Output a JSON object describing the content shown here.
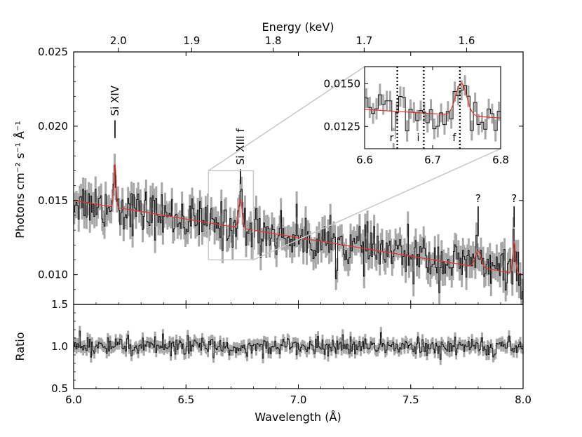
{
  "colors": {
    "model": "#e8322e",
    "data": "#111111",
    "error": "#a8a8a8",
    "frame": "#000000",
    "zoom_box": "#c8c8c8"
  },
  "chart_data": [
    {
      "id": "main",
      "type": "line",
      "xlabel": "Wavelength (Å)",
      "ylabel": "Photons cm⁻² s⁻¹ Å⁻¹",
      "top_xlabel": "Energy (keV)",
      "xlim": [
        6.0,
        8.0
      ],
      "ylim": [
        0.008,
        0.025
      ],
      "xticks": [
        {
          "value": 6.0,
          "label": "6.0"
        },
        {
          "value": 6.5,
          "label": "6.5"
        },
        {
          "value": 7.0,
          "label": "7.0"
        },
        {
          "value": 7.5,
          "label": "7.5"
        },
        {
          "value": 8.0,
          "label": "8.0"
        }
      ],
      "yticks": [
        {
          "value": 0.01,
          "label": "0.010"
        },
        {
          "value": 0.015,
          "label": "0.015"
        },
        {
          "value": 0.02,
          "label": "0.020"
        },
        {
          "value": 0.025,
          "label": "0.025"
        }
      ],
      "top_ticks": [
        {
          "value": 2.0,
          "label": "2.0"
        },
        {
          "value": 1.9,
          "label": "1.9"
        },
        {
          "value": 1.8,
          "label": "1.8"
        },
        {
          "value": 1.7,
          "label": "1.7"
        },
        {
          "value": 1.6,
          "label": "1.6"
        }
      ],
      "continuum": {
        "x": [
          6.0,
          8.0
        ],
        "y": [
          0.015,
          0.01
        ]
      },
      "model_lines": [
        {
          "center": 6.184,
          "amplitude": 0.0029,
          "sigma": 0.005
        },
        {
          "center": 6.742,
          "amplitude": 0.0019,
          "sigma": 0.008
        },
        {
          "center": 7.8,
          "amplitude": 0.0011,
          "sigma": 0.013
        },
        {
          "center": 7.96,
          "amplitude": 0.0021,
          "sigma": 0.006
        }
      ],
      "annotations": [
        {
          "label": "Si XIV",
          "x": 6.184,
          "y_line": [
            0.0192,
            0.0204
          ]
        },
        {
          "label": "Si XIII f",
          "x": 6.742,
          "y_line": [
            0.0161,
            0.0171
          ]
        },
        {
          "label": "?",
          "x": 7.8,
          "y_line": [
            0.0126,
            0.0146
          ]
        },
        {
          "label": "?",
          "x": 7.96,
          "y_line": [
            0.0132,
            0.0146
          ]
        }
      ],
      "zoom_box": {
        "x": [
          6.6,
          6.8
        ],
        "y": [
          0.011,
          0.017
        ]
      }
    },
    {
      "id": "inset",
      "type": "line",
      "xlim": [
        6.6,
        6.8
      ],
      "ylim": [
        0.0112,
        0.016
      ],
      "xticks": [
        {
          "value": 6.6,
          "label": "6.6"
        },
        {
          "value": 6.7,
          "label": "6.7"
        },
        {
          "value": 6.8,
          "label": "6.8"
        }
      ],
      "yticks": [
        {
          "value": 0.0125,
          "label": "0.0125"
        },
        {
          "value": 0.015,
          "label": "0.0150"
        }
      ],
      "markers": [
        {
          "label": "r",
          "x": 6.648
        },
        {
          "label": "i",
          "x": 6.687
        },
        {
          "label": "f",
          "x": 6.74
        }
      ]
    },
    {
      "id": "ratio",
      "type": "line",
      "ylabel": "Ratio",
      "xlim": [
        6.0,
        8.0
      ],
      "ylim": [
        0.5,
        1.5
      ],
      "xticks": [
        {
          "value": 6.0,
          "label": "6.0"
        },
        {
          "value": 6.5,
          "label": "6.5"
        },
        {
          "value": 7.0,
          "label": "7.0"
        },
        {
          "value": 7.5,
          "label": "7.5"
        },
        {
          "value": 8.0,
          "label": "8.0"
        }
      ],
      "yticks": [
        {
          "value": 0.5,
          "label": "0.5"
        },
        {
          "value": 1.0,
          "label": "1.0"
        },
        {
          "value": 1.5,
          "label": "1.5"
        }
      ],
      "reference": 1.0
    }
  ]
}
